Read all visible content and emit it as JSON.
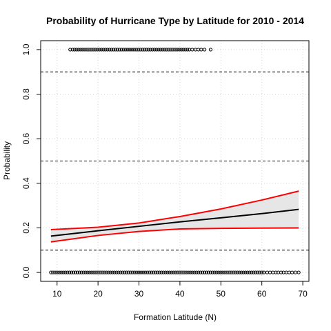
{
  "chart_data": {
    "type": "scatter",
    "title": "Probability of Hurricane Type by Latitude for 2010 - 2014",
    "xlabel": "Formation Latitude (N)",
    "ylabel": "Probability",
    "xlim": [
      6.0,
      71.5
    ],
    "ylim": [
      -0.04,
      1.04
    ],
    "x_ticks": [
      10,
      20,
      30,
      40,
      50,
      60,
      70
    ],
    "y_ticks": [
      0.0,
      0.2,
      0.4,
      0.6,
      0.8,
      1.0
    ],
    "grid": true,
    "reference_lines": [
      0.1,
      0.5,
      0.9
    ],
    "points_y1": {
      "y": 1.0,
      "x": [
        13.2,
        13.8,
        14.3,
        14.8,
        15.3,
        15.8,
        16.3,
        16.8,
        17.3,
        17.8,
        18.3,
        18.8,
        19.3,
        19.8,
        20.3,
        20.8,
        21.3,
        21.8,
        22.3,
        22.8,
        23.3,
        23.8,
        24.3,
        24.8,
        25.3,
        25.8,
        26.3,
        26.8,
        27.3,
        27.8,
        28.3,
        28.8,
        29.3,
        29.8,
        30.3,
        30.8,
        31.3,
        31.8,
        32.3,
        32.8,
        33.3,
        33.8,
        34.3,
        34.8,
        35.3,
        35.8,
        36.3,
        36.8,
        37.3,
        37.8,
        38.3,
        38.8,
        39.3,
        39.8,
        40.3,
        40.8,
        41.3,
        41.8,
        42.3,
        43.0,
        43.8,
        44.5,
        45.2,
        46.0,
        47.5
      ]
    },
    "points_y0": {
      "y": 0.0,
      "x": [
        8.5,
        9.0,
        9.5,
        10.0,
        10.5,
        11.0,
        11.5,
        12.0,
        12.5,
        13.0,
        13.5,
        14.0,
        14.5,
        15.0,
        15.5,
        16.0,
        16.5,
        17.0,
        17.5,
        18.0,
        18.5,
        19.0,
        19.5,
        20.0,
        20.5,
        21.0,
        21.5,
        22.0,
        22.5,
        23.0,
        23.5,
        24.0,
        24.5,
        25.0,
        25.5,
        26.0,
        26.5,
        27.0,
        27.5,
        28.0,
        28.5,
        29.0,
        29.5,
        30.0,
        30.5,
        31.0,
        31.5,
        32.0,
        32.5,
        33.0,
        33.5,
        34.0,
        34.5,
        35.0,
        35.5,
        36.0,
        36.5,
        37.0,
        37.5,
        38.0,
        38.5,
        39.0,
        39.5,
        40.0,
        40.5,
        41.0,
        41.5,
        42.0,
        42.5,
        43.0,
        43.5,
        44.0,
        44.5,
        45.0,
        45.5,
        46.0,
        46.5,
        47.0,
        47.5,
        48.0,
        48.5,
        49.0,
        49.5,
        50.0,
        50.5,
        51.0,
        51.5,
        52.0,
        52.5,
        53.0,
        53.5,
        54.0,
        54.5,
        55.0,
        55.5,
        56.0,
        56.5,
        57.0,
        57.5,
        58.0,
        58.5,
        59.0,
        59.5,
        60.0,
        60.5,
        61.3,
        62.0,
        62.7,
        63.4,
        64.0,
        64.7,
        65.3,
        66.0,
        66.7,
        67.4,
        68.2,
        69.0
      ]
    },
    "fit": {
      "x": [
        8.5,
        20,
        30,
        40,
        50,
        60,
        69
      ],
      "y": [
        0.163,
        0.187,
        0.207,
        0.227,
        0.245,
        0.264,
        0.283
      ],
      "color": "#000000"
    },
    "upper": {
      "x": [
        8.5,
        20,
        30,
        40,
        50,
        60,
        69
      ],
      "y": [
        0.192,
        0.203,
        0.222,
        0.251,
        0.285,
        0.325,
        0.365
      ],
      "color": "#ff0000"
    },
    "lower": {
      "x": [
        8.5,
        20,
        30,
        40,
        50,
        60,
        69
      ],
      "y": [
        0.137,
        0.166,
        0.184,
        0.195,
        0.198,
        0.199,
        0.2
      ],
      "color": "#ff0000"
    },
    "band_fill": "#e6e6e6"
  }
}
